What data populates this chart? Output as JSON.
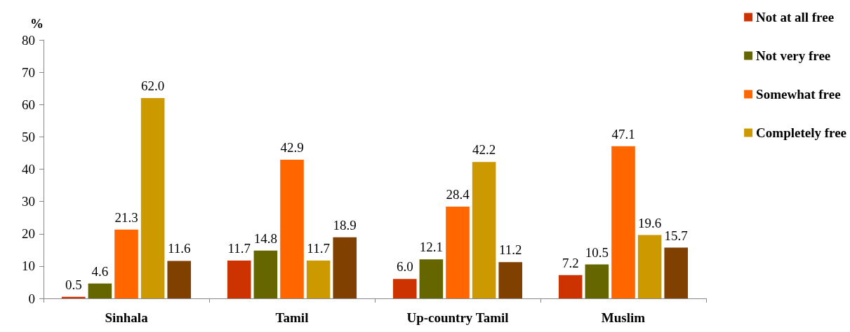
{
  "chart_data": {
    "type": "bar",
    "ylabel": "%",
    "categories": [
      "Sinhala",
      "Tamil",
      "Up-country Tamil",
      "Muslim"
    ],
    "series": [
      {
        "name": "Not at all free",
        "color": "#cc3300",
        "values": [
          0.5,
          11.7,
          6,
          7.2
        ],
        "value_labels": [
          "0.5",
          "11.7",
          "6.0",
          "7.2"
        ]
      },
      {
        "name": "Not very free",
        "color": "#666600",
        "values": [
          4.6,
          14.8,
          12.1,
          10.5
        ],
        "value_labels": [
          "4.6",
          "14.8",
          "12.1",
          "10.5"
        ]
      },
      {
        "name": "Somewhat free",
        "color": "#ff6600",
        "values": [
          21.3,
          42.9,
          28.4,
          47.1
        ],
        "value_labels": [
          "21.3",
          "42.9",
          "28.4",
          "47.1"
        ]
      },
      {
        "name": "Completely free",
        "color": "#cc9900",
        "values": [
          62,
          11.7,
          42.2,
          19.6
        ],
        "value_labels": [
          "62.0",
          "11.7",
          "42.2",
          "19.6"
        ]
      },
      {
        "color": "#804000",
        "values": [
          11.6,
          18.9,
          11.2,
          15.7
        ],
        "value_labels": [
          "11.6",
          "18.9",
          "11.2",
          "15.7"
        ]
      }
    ],
    "ylim": [
      0,
      80
    ],
    "yticks": [
      0,
      10,
      20,
      30,
      40,
      50,
      60,
      70,
      80
    ],
    "legend": "top right"
  }
}
